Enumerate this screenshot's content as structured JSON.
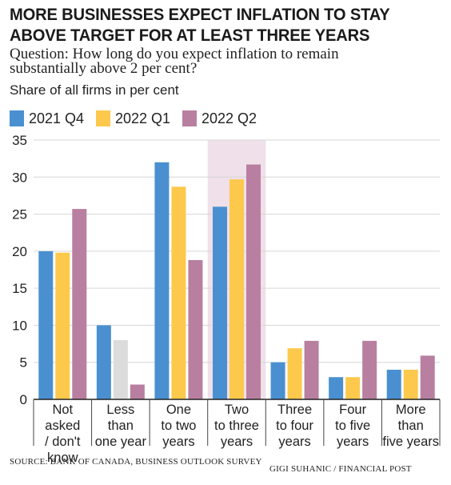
{
  "title_lines": [
    "MORE BUSINESSES EXPECT INFLATION TO STAY",
    "ABOVE TARGET FOR AT LEAST THREE YEARS"
  ],
  "question_lines": [
    "Question: How long do you expect inflation to remain",
    "substantially above 2 per cent?"
  ],
  "source": "SOURCE: BANK OF CANADA, BUSINESS OUTLOOK SURVEY",
  "credit": "GIGI SUHANIC / FINANCIAL POST",
  "chart_data": {
    "type": "bar",
    "ylabel": "Share of all firms in per cent",
    "ylim": [
      0,
      35
    ],
    "yticks": [
      0,
      5,
      10,
      15,
      20,
      25,
      30,
      35
    ],
    "grid": true,
    "legend_position": "top-left",
    "categories": [
      [
        "Not",
        "asked",
        "/ don't",
        "know"
      ],
      [
        "Less",
        "than",
        "one year"
      ],
      [
        "One",
        "to two",
        "years"
      ],
      [
        "Two",
        "to three",
        "years"
      ],
      [
        "Three",
        "to four",
        "years"
      ],
      [
        "Four",
        "to five",
        "years"
      ],
      [
        "More",
        "than",
        "five years"
      ]
    ],
    "series": [
      {
        "name": "2021 Q4",
        "color": "#4a90d0",
        "values": [
          20,
          10,
          32,
          26,
          5,
          3,
          4
        ]
      },
      {
        "name": "2022 Q1",
        "color": "#fdc94c",
        "values": [
          19.8,
          8,
          28.7,
          29.7,
          6.9,
          3,
          4
        ]
      },
      {
        "name": "2022 Q2",
        "color": "#b87fa0",
        "values": [
          25.7,
          2,
          18.8,
          31.7,
          7.9,
          7.9,
          5.9
        ]
      }
    ],
    "highlight_category_index": 3,
    "highlight_color": "#efe0e9",
    "muted_bars": [
      {
        "series": 1,
        "category": 1,
        "color": "#dcdcdc"
      }
    ]
  }
}
